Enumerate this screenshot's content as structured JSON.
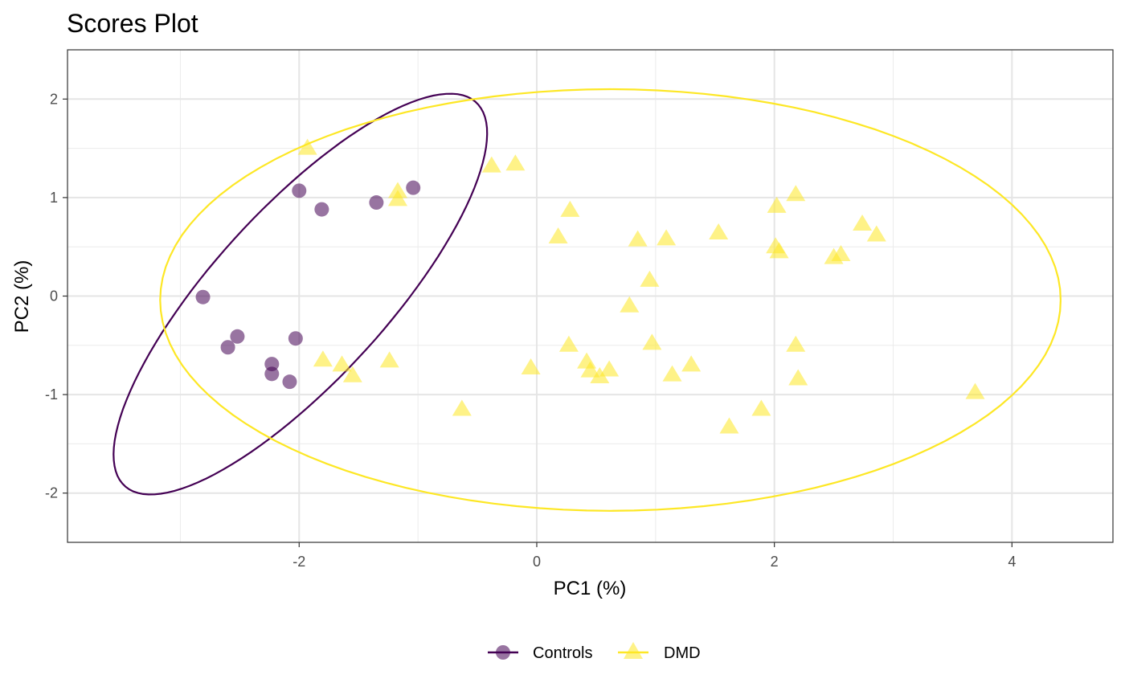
{
  "chart_data": {
    "type": "scatter",
    "title": "Scores Plot",
    "xlabel": "PC1 (%)",
    "ylabel": "PC2 (%)",
    "xlim": [
      -3.95,
      4.85
    ],
    "ylim": [
      -2.5,
      2.5
    ],
    "x_ticks": [
      -2,
      0,
      2,
      4
    ],
    "y_ticks": [
      -2,
      -1,
      0,
      1,
      2
    ],
    "x_tick_labels": [
      "-2",
      "0",
      "2",
      "4"
    ],
    "y_tick_labels": [
      "-2",
      "-1",
      "0",
      "1",
      "2"
    ],
    "grid": true,
    "legend_position": "bottom",
    "series": [
      {
        "name": "Controls",
        "marker": "circle",
        "color": "#440154",
        "points": [
          {
            "x": -2.81,
            "y": -0.01
          },
          {
            "x": -2.6,
            "y": -0.52
          },
          {
            "x": -2.52,
            "y": -0.41
          },
          {
            "x": -2.23,
            "y": -0.69
          },
          {
            "x": -2.23,
            "y": -0.79
          },
          {
            "x": -2.08,
            "y": -0.87
          },
          {
            "x": -2.03,
            "y": -0.43
          },
          {
            "x": -2.0,
            "y": 1.07
          },
          {
            "x": -1.81,
            "y": 0.88
          },
          {
            "x": -1.35,
            "y": 0.95
          },
          {
            "x": -1.04,
            "y": 1.1
          }
        ],
        "ellipse": {
          "cx": -1.99,
          "cy": 0.02,
          "rx": 2.45,
          "ry": 0.78,
          "angle_deg": 54
        }
      },
      {
        "name": "DMD",
        "marker": "triangle",
        "color": "#FDE725",
        "points": [
          {
            "x": -1.93,
            "y": 1.5
          },
          {
            "x": -1.17,
            "y": 1.06
          },
          {
            "x": -1.17,
            "y": 0.98
          },
          {
            "x": -1.8,
            "y": -0.65
          },
          {
            "x": -1.64,
            "y": -0.7
          },
          {
            "x": -1.55,
            "y": -0.81
          },
          {
            "x": -1.24,
            "y": -0.66
          },
          {
            "x": -0.63,
            "y": -1.15
          },
          {
            "x": -0.38,
            "y": 1.32
          },
          {
            "x": -0.18,
            "y": 1.34
          },
          {
            "x": -0.05,
            "y": -0.73
          },
          {
            "x": 0.18,
            "y": 0.6
          },
          {
            "x": 0.28,
            "y": 0.87
          },
          {
            "x": 0.27,
            "y": -0.5
          },
          {
            "x": 0.42,
            "y": -0.67
          },
          {
            "x": 0.45,
            "y": -0.76
          },
          {
            "x": 0.53,
            "y": -0.82
          },
          {
            "x": 0.61,
            "y": -0.75
          },
          {
            "x": 0.78,
            "y": -0.1
          },
          {
            "x": 0.85,
            "y": 0.57
          },
          {
            "x": 0.95,
            "y": 0.16
          },
          {
            "x": 0.97,
            "y": -0.48
          },
          {
            "x": 1.09,
            "y": 0.58
          },
          {
            "x": 1.14,
            "y": -0.8
          },
          {
            "x": 1.3,
            "y": -0.7
          },
          {
            "x": 1.53,
            "y": 0.64
          },
          {
            "x": 1.62,
            "y": -1.33
          },
          {
            "x": 1.89,
            "y": -1.15
          },
          {
            "x": 2.01,
            "y": 0.5
          },
          {
            "x": 2.02,
            "y": 0.91
          },
          {
            "x": 2.04,
            "y": 0.45
          },
          {
            "x": 2.18,
            "y": 1.03
          },
          {
            "x": 2.18,
            "y": -0.5
          },
          {
            "x": 2.2,
            "y": -0.84
          },
          {
            "x": 2.5,
            "y": 0.39
          },
          {
            "x": 2.56,
            "y": 0.42
          },
          {
            "x": 2.74,
            "y": 0.73
          },
          {
            "x": 2.86,
            "y": 0.62
          },
          {
            "x": 3.69,
            "y": -0.98
          }
        ],
        "ellipse": {
          "cx": 0.62,
          "cy": -0.04,
          "rx": 3.79,
          "ry": 2.14,
          "angle_deg": 0
        }
      }
    ]
  }
}
